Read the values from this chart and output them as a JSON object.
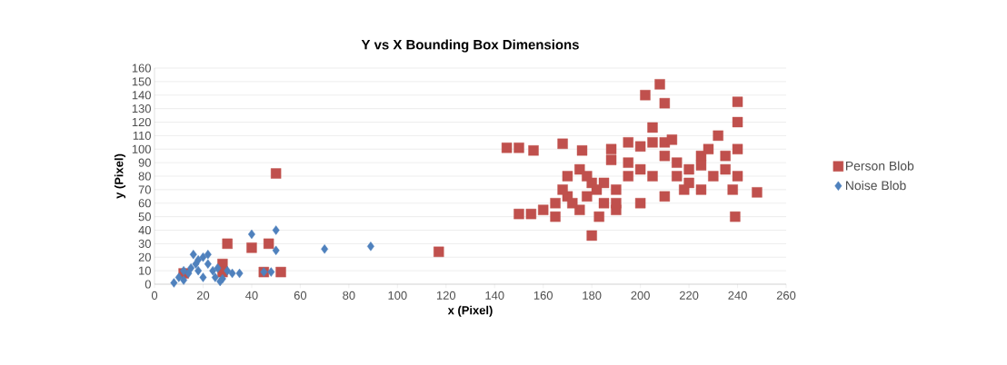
{
  "chart_data": {
    "type": "scatter",
    "title": "Y vs X Bounding Box Dimensions",
    "xlabel": "x (Pixel)",
    "ylabel": "y (Pixel)",
    "xlim": [
      0,
      260
    ],
    "xticks": [
      0,
      20,
      40,
      60,
      80,
      100,
      120,
      140,
      160,
      180,
      200,
      220,
      240,
      260
    ],
    "ylim": [
      0,
      160
    ],
    "yticks": [
      0,
      10,
      20,
      30,
      40,
      50,
      60,
      70,
      80,
      90,
      100,
      110,
      120,
      130,
      140,
      150,
      160
    ],
    "grid": "y",
    "legend": "right",
    "series": [
      {
        "name": "Person Blob",
        "color": "#c0504d",
        "marker": "square",
        "x": [
          50,
          30,
          47,
          40,
          28,
          28,
          52,
          45,
          12,
          117,
          145,
          150,
          156,
          168,
          176,
          180,
          183,
          150,
          155,
          160,
          165,
          170,
          170,
          175,
          180,
          185,
          190,
          188,
          188,
          195,
          200,
          205,
          210,
          213,
          202,
          208,
          210,
          205,
          200,
          195,
          205,
          210,
          215,
          220,
          225,
          225,
          228,
          232,
          235,
          238,
          240,
          240,
          240,
          240,
          239,
          248,
          200,
          190,
          185,
          175,
          172,
          178,
          165,
          195,
          215,
          220,
          230,
          235,
          225,
          218,
          210,
          190,
          182,
          168,
          178
        ],
        "values": [
          82,
          30,
          30,
          27,
          15,
          9,
          9,
          9,
          8,
          24,
          101,
          101,
          99,
          104,
          99,
          36,
          50,
          52,
          52,
          55,
          50,
          65,
          80,
          85,
          75,
          60,
          55,
          92,
          100,
          105,
          102,
          105,
          105,
          107,
          140,
          148,
          134,
          116,
          85,
          80,
          80,
          65,
          80,
          75,
          70,
          95,
          100,
          110,
          95,
          70,
          135,
          120,
          100,
          80,
          50,
          68,
          60,
          70,
          75,
          55,
          60,
          65,
          60,
          90,
          90,
          85,
          80,
          85,
          88,
          70,
          95,
          60,
          70,
          70,
          80
        ]
      },
      {
        "name": "Noise Blob",
        "color": "#4f81bd",
        "marker": "diamond",
        "x": [
          8,
          12,
          14,
          15,
          16,
          18,
          20,
          22,
          18,
          20,
          24,
          25,
          27,
          28,
          30,
          32,
          35,
          40,
          45,
          48,
          50,
          50,
          70,
          89,
          17,
          12,
          22,
          10,
          26
        ],
        "values": [
          1,
          3,
          8,
          12,
          22,
          18,
          20,
          15,
          10,
          5,
          10,
          5,
          2,
          4,
          10,
          8,
          8,
          37,
          9,
          9,
          40,
          25,
          26,
          28,
          15,
          10,
          22,
          5,
          12
        ]
      }
    ]
  }
}
